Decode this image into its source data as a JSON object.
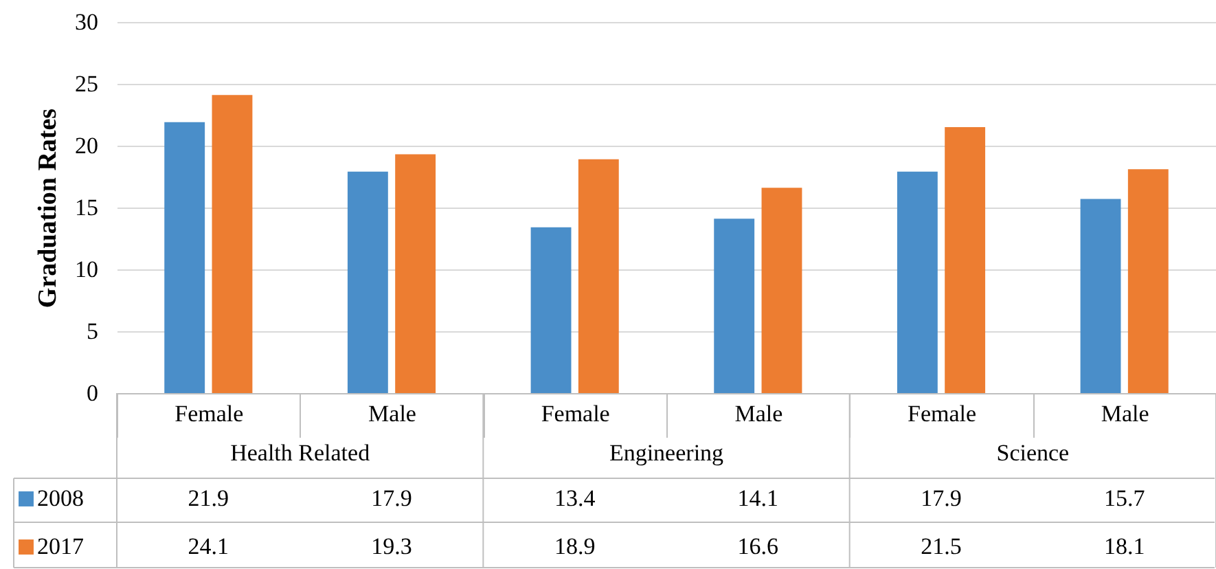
{
  "chart_data": {
    "type": "bar",
    "ylabel": "Graduation Rates",
    "categories": [
      "Female",
      "Male",
      "Female",
      "Male",
      "Female",
      "Male"
    ],
    "annotations": [
      "Health Related",
      "Engineering",
      "Science"
    ],
    "series": [
      {
        "name": "2008",
        "color": "#4a8ec9",
        "values": [
          21.9,
          17.9,
          13.4,
          14.1,
          17.9,
          15.7
        ]
      },
      {
        "name": "2017",
        "color": "#ed7d31",
        "values": [
          24.1,
          19.3,
          18.9,
          16.6,
          21.5,
          18.1
        ]
      }
    ],
    "ylim": [
      0,
      30
    ],
    "yticks": [
      0,
      5,
      10,
      15,
      20,
      25,
      30
    ],
    "grid": "y",
    "data_labels": true,
    "legend": "bottom left"
  }
}
